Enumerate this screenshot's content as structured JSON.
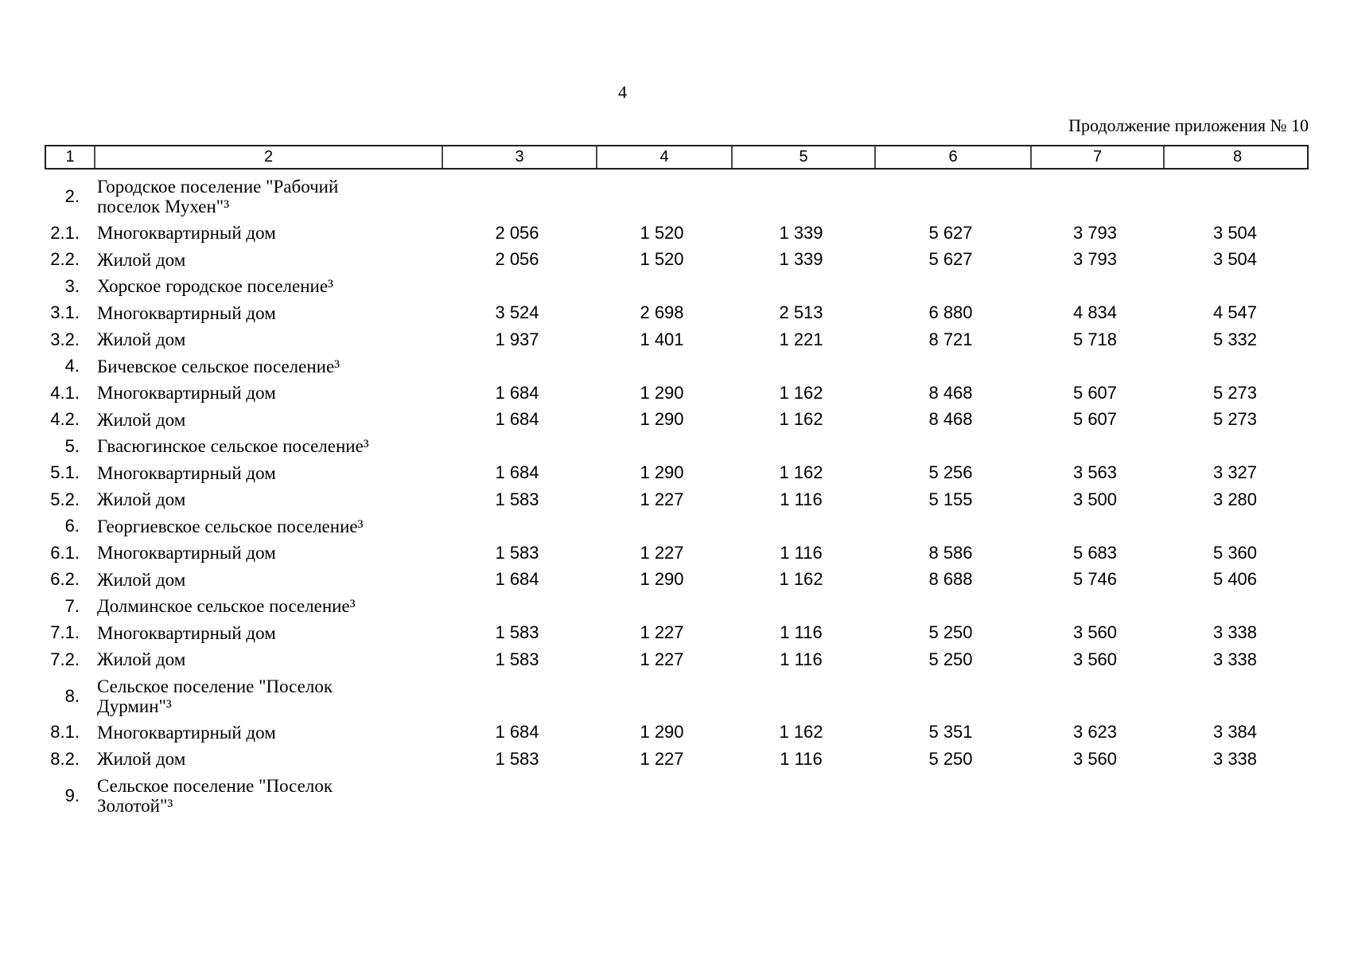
{
  "page": {
    "number": "4",
    "header_note": "Продолжение приложения № 10"
  },
  "table": {
    "column_headers": [
      "1",
      "2",
      "3",
      "4",
      "5",
      "6",
      "7",
      "8"
    ],
    "rows": [
      {
        "num": "2.",
        "name": "Городское поселение \"Рабочий\nпоселок Мухен\"³",
        "values": []
      },
      {
        "num": "2.1.",
        "name": "Многоквартирный дом",
        "values": [
          "2 056",
          "1 520",
          "1 339",
          "5 627",
          "3 793",
          "3 504"
        ]
      },
      {
        "num": "2.2.",
        "name": "Жилой дом",
        "values": [
          "2 056",
          "1 520",
          "1 339",
          "5 627",
          "3 793",
          "3 504"
        ]
      },
      {
        "num": "3.",
        "name": "Хорское городское поселение³",
        "values": []
      },
      {
        "num": "3.1.",
        "name": "Многоквартирный дом",
        "values": [
          "3 524",
          "2 698",
          "2 513",
          "6 880",
          "4 834",
          "4 547"
        ]
      },
      {
        "num": "3.2.",
        "name": "Жилой дом",
        "values": [
          "1 937",
          "1 401",
          "1 221",
          "8 721",
          "5 718",
          "5 332"
        ]
      },
      {
        "num": "4.",
        "name": "Бичевское сельское поселение³",
        "values": []
      },
      {
        "num": "4.1.",
        "name": "Многоквартирный дом",
        "values": [
          "1 684",
          "1 290",
          "1 162",
          "8 468",
          "5 607",
          "5 273"
        ]
      },
      {
        "num": "4.2.",
        "name": "Жилой дом",
        "values": [
          "1 684",
          "1 290",
          "1 162",
          "8 468",
          "5 607",
          "5 273"
        ]
      },
      {
        "num": "5.",
        "name": "Гвасюгинское сельское поселение³",
        "values": []
      },
      {
        "num": "5.1.",
        "name": "Многоквартирный дом",
        "values": [
          "1 684",
          "1 290",
          "1 162",
          "5 256",
          "3 563",
          "3 327"
        ]
      },
      {
        "num": "5.2.",
        "name": "Жилой дом",
        "values": [
          "1 583",
          "1 227",
          "1 116",
          "5 155",
          "3 500",
          "3 280"
        ]
      },
      {
        "num": "6.",
        "name": "Георгиевское сельское поселение³",
        "values": []
      },
      {
        "num": "6.1.",
        "name": "Многоквартирный дом",
        "values": [
          "1 583",
          "1 227",
          "1 116",
          "8 586",
          "5 683",
          "5 360"
        ]
      },
      {
        "num": "6.2.",
        "name": "Жилой дом",
        "values": [
          "1 684",
          "1 290",
          "1 162",
          "8 688",
          "5 746",
          "5 406"
        ]
      },
      {
        "num": "7.",
        "name": "Долминское сельское поселение³",
        "values": []
      },
      {
        "num": "7.1.",
        "name": "Многоквартирный дом",
        "values": [
          "1 583",
          "1 227",
          "1 116",
          "5 250",
          "3 560",
          "3 338"
        ]
      },
      {
        "num": "7.2.",
        "name": "Жилой дом",
        "values": [
          "1 583",
          "1 227",
          "1 116",
          "5 250",
          "3 560",
          "3 338"
        ]
      },
      {
        "num": "8.",
        "name": "Сельское поселение \"Поселок\nДурмин\"³",
        "values": []
      },
      {
        "num": "8.1.",
        "name": "Многоквартирный дом",
        "values": [
          "1 684",
          "1 290",
          "1 162",
          "5 351",
          "3 623",
          "3 384"
        ]
      },
      {
        "num": "8.2.",
        "name": "Жилой дом",
        "values": [
          "1 583",
          "1 227",
          "1 116",
          "5 250",
          "3 560",
          "3 338"
        ]
      },
      {
        "num": "9.",
        "name": "Сельское поселение \"Поселок\nЗолотой\"³",
        "values": []
      }
    ]
  }
}
